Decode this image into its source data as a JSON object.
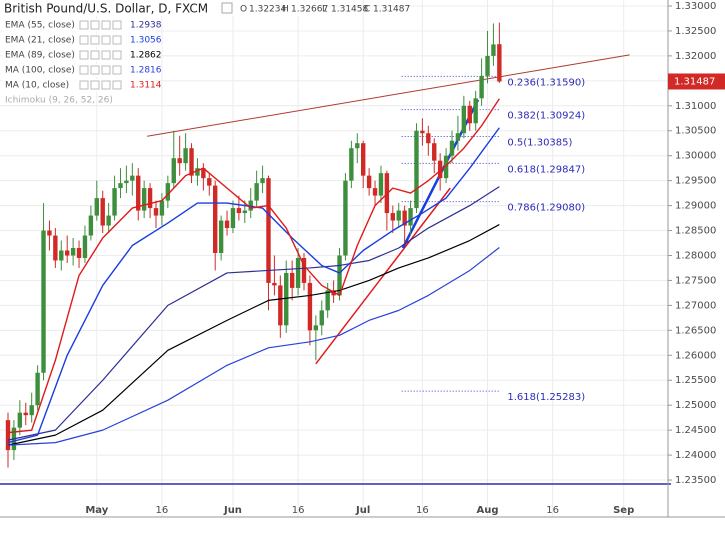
{
  "chart_data": {
    "type": "candlestick",
    "header": {
      "title": "British Pound/U.S. Dollar, D, FXCM",
      "ohlc_letters": [
        "O",
        "H",
        "L",
        "C"
      ]
    },
    "categories": [
      null,
      null,
      null,
      null,
      null,
      null,
      null,
      null,
      null,
      null,
      null,
      null,
      null,
      null,
      null,
      "May",
      null,
      null,
      null,
      null,
      null,
      null,
      null,
      null,
      null,
      null,
      "16",
      null,
      null,
      null,
      null,
      null,
      null,
      null,
      null,
      null,
      null,
      null,
      "Jun",
      null,
      null,
      null,
      null,
      null,
      null,
      null,
      null,
      null,
      null,
      "16",
      null,
      null,
      null,
      null,
      null,
      null,
      null,
      null,
      null,
      null,
      "Jul",
      null,
      null,
      null,
      null,
      null,
      null,
      null,
      null,
      null,
      "16",
      null,
      null,
      null,
      null,
      null,
      null,
      null,
      null,
      null,
      null,
      "Aug",
      null,
      null,
      null,
      null,
      null,
      null,
      null,
      null,
      null,
      null,
      "16",
      null,
      null,
      null,
      null,
      null,
      null,
      null,
      null,
      null,
      null,
      null,
      "Sep",
      null,
      null,
      null,
      null,
      null,
      null,
      null
    ],
    "open": [
      1.247,
      1.241,
      1.2455,
      1.2485,
      1.248,
      1.25,
      1.2565,
      1.285,
      1.284,
      1.279,
      1.281,
      1.28,
      1.2815,
      1.2795,
      1.284,
      1.288,
      1.2915,
      1.286,
      1.288,
      1.2935,
      1.2945,
      1.295,
      1.296,
      1.289,
      1.2935,
      1.2895,
      1.288,
      1.291,
      1.2945,
      1.2995,
      1.2985,
      1.3015,
      1.296,
      1.2975,
      1.2955,
      1.294,
      1.2805,
      1.287,
      1.2855,
      1.2895,
      1.2885,
      1.289,
      1.291,
      1.2945,
      1.2955,
      1.2745,
      1.274,
      1.266,
      1.2765,
      1.2735,
      1.2795,
      1.2745,
      1.265,
      1.266,
      1.269,
      1.273,
      1.272,
      1.28,
      1.295,
      1.3015,
      1.3025,
      1.296,
      1.2935,
      1.292,
      1.2965,
      1.2885,
      1.287,
      1.289,
      1.286,
      1.2895,
      1.305,
      1.3045,
      1.3025,
      1.299,
      1.2955,
      1.3,
      1.303,
      1.3045,
      1.31,
      1.3065,
      1.3115,
      1.316,
      1.32,
      1.32234,
      null,
      null,
      null,
      null,
      null,
      null,
      null,
      null,
      null,
      null,
      null,
      null,
      null,
      null,
      null,
      null,
      null,
      null,
      null,
      null,
      null,
      null,
      null,
      null,
      null,
      null,
      null,
      null
    ],
    "high": [
      1.2485,
      1.247,
      1.251,
      1.2505,
      1.2525,
      1.258,
      1.2905,
      1.287,
      1.2855,
      1.283,
      1.284,
      1.2835,
      1.283,
      1.286,
      1.29,
      1.295,
      1.293,
      1.2905,
      1.296,
      1.2975,
      1.298,
      1.2985,
      1.2975,
      1.295,
      1.2945,
      1.291,
      1.2925,
      1.296,
      1.305,
      1.304,
      1.3045,
      1.3025,
      1.2995,
      1.2985,
      1.2965,
      1.295,
      1.288,
      1.289,
      1.291,
      1.292,
      1.291,
      1.2935,
      1.297,
      1.298,
      1.296,
      1.28,
      1.276,
      1.279,
      1.279,
      1.2815,
      1.2805,
      1.276,
      1.268,
      1.271,
      1.2745,
      1.275,
      1.2815,
      1.2965,
      1.303,
      1.3045,
      1.303,
      1.2975,
      1.295,
      1.298,
      1.297,
      1.29,
      1.2905,
      1.29,
      1.291,
      1.3065,
      1.3075,
      1.306,
      1.3035,
      1.3005,
      1.3015,
      1.305,
      1.308,
      1.312,
      1.311,
      1.313,
      1.3195,
      1.325,
      1.3265,
      1.32667,
      null,
      null,
      null,
      null,
      null,
      null,
      null,
      null,
      null,
      null,
      null,
      null,
      null,
      null,
      null,
      null,
      null,
      null,
      null,
      null,
      null,
      null,
      null,
      null,
      null,
      null,
      null,
      null
    ],
    "low": [
      1.2375,
      1.239,
      1.244,
      1.246,
      1.2465,
      1.249,
      1.255,
      1.281,
      1.2775,
      1.277,
      1.2785,
      1.278,
      1.2775,
      1.2785,
      1.283,
      1.287,
      1.2845,
      1.2845,
      1.287,
      1.2915,
      1.2925,
      1.292,
      1.287,
      1.2875,
      1.2875,
      1.2855,
      1.286,
      1.2895,
      1.2935,
      1.296,
      1.297,
      1.2945,
      1.294,
      1.293,
      1.292,
      1.277,
      1.279,
      1.284,
      1.2845,
      1.287,
      1.2865,
      1.2875,
      1.2895,
      1.2925,
      1.269,
      1.272,
      1.2635,
      1.2645,
      1.271,
      1.272,
      1.273,
      1.262,
      1.259,
      1.264,
      1.2675,
      1.2705,
      1.271,
      1.279,
      1.2935,
      1.2985,
      1.2935,
      1.292,
      1.29,
      1.2905,
      1.285,
      1.2845,
      1.2855,
      1.282,
      1.284,
      1.2885,
      1.302,
      1.3,
      1.2965,
      1.293,
      1.2945,
      1.2985,
      1.301,
      1.3035,
      1.305,
      1.305,
      1.31,
      1.3145,
      1.318,
      1.31458,
      null,
      null,
      null,
      null,
      null,
      null,
      null,
      null,
      null,
      null,
      null,
      null,
      null,
      null,
      null,
      null,
      null,
      null,
      null,
      null,
      null,
      null,
      null,
      null,
      null,
      null,
      null,
      null
    ],
    "close": [
      1.241,
      1.2455,
      1.2485,
      1.248,
      1.25,
      1.2565,
      1.285,
      1.284,
      1.279,
      1.281,
      1.28,
      1.2815,
      1.2795,
      1.284,
      1.288,
      1.2915,
      1.286,
      1.288,
      1.2935,
      1.2945,
      1.295,
      1.296,
      1.289,
      1.2935,
      1.2895,
      1.288,
      1.291,
      1.2945,
      1.2995,
      1.2985,
      1.3015,
      1.296,
      1.2975,
      1.2955,
      1.294,
      1.2805,
      1.287,
      1.2855,
      1.2895,
      1.2885,
      1.289,
      1.291,
      1.2945,
      1.2955,
      1.2745,
      1.274,
      1.266,
      1.2765,
      1.2735,
      1.2795,
      1.2745,
      1.265,
      1.266,
      1.269,
      1.273,
      1.272,
      1.28,
      1.295,
      1.3015,
      1.3025,
      1.296,
      1.2935,
      1.292,
      1.2965,
      1.2885,
      1.287,
      1.289,
      1.286,
      1.2895,
      1.305,
      1.3045,
      1.3025,
      1.299,
      1.2955,
      1.3,
      1.303,
      1.3045,
      1.31,
      1.3065,
      1.3115,
      1.316,
      1.32,
      1.3223,
      1.31487,
      null,
      null,
      null,
      null,
      null,
      null,
      null,
      null,
      null,
      null,
      null,
      null,
      null,
      null,
      null,
      null,
      null,
      null,
      null,
      null,
      null,
      null,
      null,
      null,
      null,
      null,
      null,
      null
    ],
    "up_color": "#3d8f3d",
    "down_color": "#d12a26",
    "series": [
      {
        "name": "EMA (55, close)",
        "color": "#2e2f92",
        "x": [
          0,
          8,
          16,
          27,
          37,
          44,
          51,
          56,
          61,
          66,
          71,
          78,
          83
        ],
        "values": [
          1.243,
          1.245,
          1.255,
          1.27,
          1.2765,
          1.277,
          1.2775,
          1.278,
          1.279,
          1.2815,
          1.2855,
          1.29,
          1.2938
        ]
      },
      {
        "name": "EMA (21, close)",
        "color": "#1a3de0",
        "x": [
          0,
          5,
          10,
          16,
          21,
          27,
          32,
          37,
          43,
          48,
          53,
          56,
          60,
          65,
          70,
          74,
          78,
          83
        ],
        "values": [
          1.2425,
          1.244,
          1.26,
          1.274,
          1.282,
          1.2865,
          1.2905,
          1.2905,
          1.2895,
          1.2835,
          1.278,
          1.2765,
          1.281,
          1.285,
          1.2885,
          1.2915,
          1.2975,
          1.3056
        ]
      },
      {
        "name": "EMA (89, close)",
        "color": "#000000",
        "x": [
          0,
          8,
          16,
          27,
          37,
          44,
          51,
          56,
          61,
          66,
          71,
          78,
          83
        ],
        "values": [
          1.242,
          1.244,
          1.249,
          1.261,
          1.267,
          1.271,
          1.272,
          1.273,
          1.275,
          1.2775,
          1.2795,
          1.283,
          1.2862
        ]
      },
      {
        "name": "MA (100, close)",
        "color": "#2742d8",
        "x": [
          0,
          8,
          16,
          27,
          37,
          44,
          51,
          56,
          61,
          66,
          71,
          78,
          83
        ],
        "values": [
          1.242,
          1.2425,
          1.245,
          1.251,
          1.258,
          1.2615,
          1.2627,
          1.264,
          1.267,
          1.269,
          1.272,
          1.277,
          1.2816
        ]
      },
      {
        "name": "MA (10, close)",
        "color": "#e01a1a",
        "x": [
          0,
          4,
          8,
          12,
          16,
          21,
          26,
          30,
          33,
          37,
          41,
          44,
          47,
          50,
          53,
          56,
          59,
          62,
          65,
          68,
          71,
          74,
          77,
          80,
          83
        ],
        "values": [
          1.2445,
          1.245,
          1.259,
          1.276,
          1.2835,
          1.2895,
          1.291,
          1.296,
          1.2975,
          1.2935,
          1.2895,
          1.29,
          1.2855,
          1.278,
          1.274,
          1.272,
          1.282,
          1.29,
          1.2935,
          1.2925,
          1.295,
          1.298,
          1.3015,
          1.306,
          1.3114
        ]
      }
    ],
    "inactive_indicators": [
      "Ichimoku (9, 26, 52, 26)"
    ],
    "trend_lines": [
      {
        "color": "#b03a2e",
        "width": 1,
        "x": [
          23.5,
          105
        ],
        "y": [
          1.3039,
          1.3202
        ]
      },
      {
        "color": "#e01a1a",
        "width": 1.5,
        "x": [
          52,
          74.7
        ],
        "y": [
          1.2583,
          1.2935
        ]
      },
      {
        "color": "#1a3de0",
        "width": 2.5,
        "x": [
          66.7,
          79.4
        ],
        "y": [
          1.2815,
          1.3112
        ]
      },
      {
        "color": "#2e2fb0",
        "width": 1.5,
        "x": [
          -2,
          112
        ],
        "y": [
          1.2342,
          1.2342
        ]
      }
    ],
    "fib_levels": {
      "x": [
        66.5,
        83
      ],
      "levels": [
        {
          "value": 1.3159,
          "label": "0.236(1.31590)"
        },
        {
          "value": 1.30924,
          "label": "0.382(1.30924)"
        },
        {
          "value": 1.30385,
          "label": "0.5(1.30385)"
        },
        {
          "value": 1.29847,
          "label": "0.618(1.29847)"
        },
        {
          "value": 1.2908,
          "label": "0.786(1.29080)"
        },
        {
          "value": 1.25283,
          "label": "1.618(1.25283)"
        }
      ]
    },
    "ylim": [
      1.231,
      1.3312
    ],
    "yticks": [
      {
        "value": 1.235,
        "label": "1.23500"
      },
      {
        "value": 1.24,
        "label": "1.24000"
      },
      {
        "value": 1.245,
        "label": "1.24500"
      },
      {
        "value": 1.25,
        "label": "1.25000"
      },
      {
        "value": 1.255,
        "label": "1.25500"
      },
      {
        "value": 1.26,
        "label": "1.26000"
      },
      {
        "value": 1.265,
        "label": "1.26500"
      },
      {
        "value": 1.27,
        "label": "1.27000"
      },
      {
        "value": 1.275,
        "label": "1.27500"
      },
      {
        "value": 1.28,
        "label": "1.28000"
      },
      {
        "value": 1.285,
        "label": "1.28500"
      },
      {
        "value": 1.29,
        "label": "1.29000"
      },
      {
        "value": 1.295,
        "label": "1.29500"
      },
      {
        "value": 1.3,
        "label": "1.30000"
      },
      {
        "value": 1.305,
        "label": "1.30500"
      },
      {
        "value": 1.31,
        "label": "1.31000"
      },
      {
        "value": 1.315,
        "label": "1.31500"
      },
      {
        "value": 1.32,
        "label": "1.32000"
      },
      {
        "value": 1.325,
        "label": "1.32500"
      },
      {
        "value": 1.33,
        "label": "1.33000"
      }
    ],
    "grid": true
  }
}
